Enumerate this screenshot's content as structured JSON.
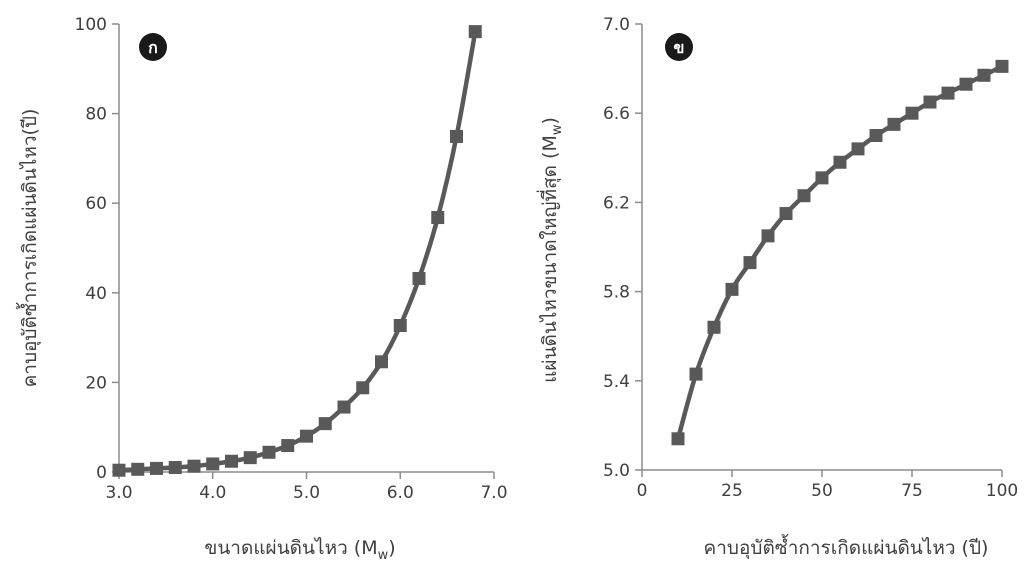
{
  "chart_data": [
    {
      "type": "line",
      "panel_label": "ก",
      "xlabel": "ขนาดแผ่นดินไหว (M",
      "xlabel_sub": "w",
      "xlabel_suffix": ")",
      "ylabel": "คาบอุบัติซ้ำการเกิดแผ่นดินไหว(ปี)",
      "xlim": [
        3.0,
        7.0
      ],
      "ylim": [
        0,
        100
      ],
      "xticks": [
        "3.0",
        "4.0",
        "5.0",
        "6.0",
        "7.0"
      ],
      "yticks": [
        "0",
        "20",
        "40",
        "60",
        "80",
        "100"
      ],
      "color": "#595959",
      "x": [
        3.0,
        3.2,
        3.4,
        3.6,
        3.8,
        4.0,
        4.2,
        4.4,
        4.6,
        4.8,
        5.0,
        5.2,
        5.4,
        5.6,
        5.8,
        6.0,
        6.2,
        6.4,
        6.6,
        6.8
      ],
      "y": [
        0.4,
        0.6,
        0.8,
        1.0,
        1.3,
        1.8,
        2.4,
        3.2,
        4.4,
        5.9,
        8.0,
        10.8,
        14.5,
        18.8,
        24.6,
        32.7,
        43.2,
        56.8,
        74.9,
        98.3
      ]
    },
    {
      "type": "line",
      "panel_label": "ข",
      "xlabel": "คาบอุบัติซ้ำการเกิดแผ่นดินไหว (ปี)",
      "ylabel": "แผ่นดินไหวขนาดใหญ่ที่สุด (M",
      "ylabel_sub": "w",
      "ylabel_suffix": ")",
      "xlim": [
        0,
        100
      ],
      "ylim": [
        5.0,
        7.0
      ],
      "xticks": [
        "0",
        "25",
        "50",
        "75",
        "100"
      ],
      "yticks": [
        "5.0",
        "5.4",
        "5.8",
        "6.2",
        "6.6",
        "7.0"
      ],
      "color": "#595959",
      "x": [
        10,
        15,
        20,
        25,
        30,
        35,
        40,
        45,
        50,
        55,
        60,
        65,
        70,
        75,
        80,
        85,
        90,
        95,
        100
      ],
      "y": [
        5.14,
        5.43,
        5.64,
        5.81,
        5.93,
        6.05,
        6.15,
        6.23,
        6.31,
        6.38,
        6.44,
        6.5,
        6.55,
        6.6,
        6.65,
        6.69,
        6.73,
        6.77,
        6.81
      ]
    }
  ]
}
